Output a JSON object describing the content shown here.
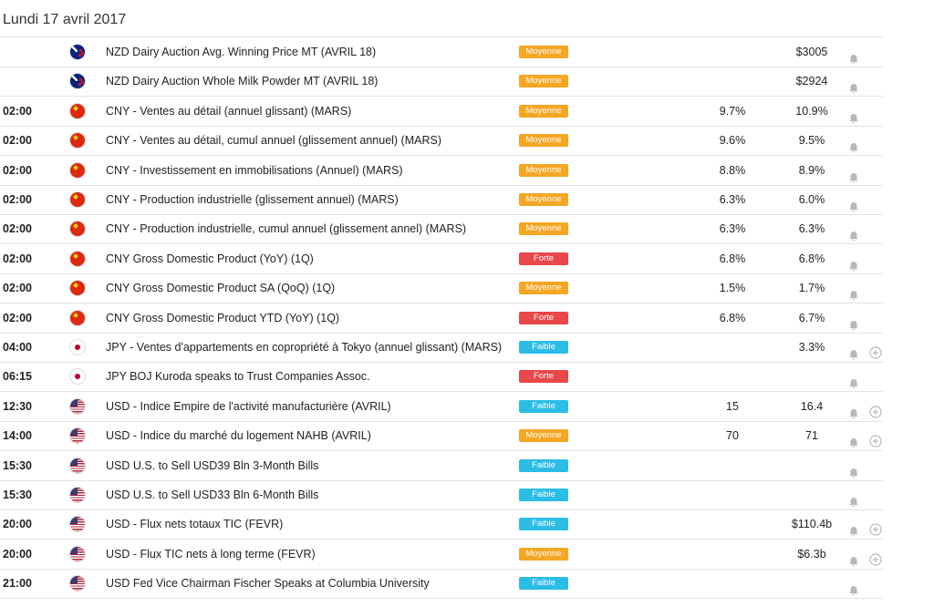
{
  "header": {
    "title": "Lundi 17 avril 2017"
  },
  "table": {
    "rows": [
      {
        "time": null,
        "event": "NZD Dairy Auction Avg. Winning Price MT (AVRIL 18)",
        "impact": "Moyenne",
        "impact_color": "#f5a623",
        "actual": null,
        "forecast": "$3005"
      },
      {
        "time": null,
        "event": "NZD Dairy Auction Whole Milk Powder MT (AVRIL 18)",
        "impact": "Moyenne",
        "impact_color": "#f5a623",
        "actual": null,
        "forecast": "$2924"
      },
      {
        "time": "02:00",
        "event": "CNY - Ventes au détail (annuel glissant) (MARS)",
        "impact": "Moyenne",
        "impact_color": "#f5a623",
        "actual": "9.7%",
        "forecast": "10.9%"
      },
      {
        "time": "02:00",
        "event": "CNY - Ventes au détail, cumul annuel (glissement annuel) (MARS)",
        "impact": "Moyenne",
        "impact_color": "#f5a623",
        "actual": "9.6%",
        "forecast": "9.5%"
      },
      {
        "time": "02:00",
        "event": "CNY - Investissement en immobilisations (Annuel) (MARS)",
        "impact": "Moyenne",
        "impact_color": "#f5a623",
        "actual": "8.8%",
        "forecast": "8.9%"
      },
      {
        "time": "02:00",
        "event": "CNY - Production industrielle (glissement annuel) (MARS)",
        "impact": "Moyenne",
        "impact_color": "#f5a623",
        "actual": "6.3%",
        "forecast": "6.0%"
      },
      {
        "time": "02:00",
        "event": "CNY - Production industrielle, cumul annuel (glissement annel) (MARS)",
        "impact": "Moyenne",
        "impact_color": "#f5a623",
        "actual": "6.3%",
        "forecast": "6.3%"
      },
      {
        "time": "02:00",
        "event": "CNY Gross Domestic Product (YoY) (1Q)",
        "impact": "Forte",
        "impact_color": "#e9474a",
        "actual": "6.8%",
        "forecast": "6.8%"
      },
      {
        "time": "02:00",
        "event": "CNY Gross Domestic Product SA (QoQ) (1Q)",
        "impact": "Moyenne",
        "impact_color": "#f5a623",
        "actual": "1.5%",
        "forecast": "1.7%"
      },
      {
        "time": "02:00",
        "event": "CNY Gross Domestic Product YTD (YoY) (1Q)",
        "impact": "Forte",
        "impact_color": "#e9474a",
        "actual": "6.8%",
        "forecast": "6.7%"
      },
      {
        "time": "04:00",
        "event": "JPY - Ventes d'appartements en copropriété à Tokyo (annuel glissant) (MARS)",
        "impact": "Faible",
        "impact_color": "#2bbde6",
        "actual": null,
        "forecast": "3.3%"
      },
      {
        "time": "06:15",
        "event": "JPY BOJ Kuroda speaks to Trust Companies Assoc.",
        "impact": "Forte",
        "impact_color": "#e9474a",
        "actual": null,
        "forecast": null
      },
      {
        "time": "12:30",
        "event": "USD - Indice Empire de l'activité manufacturière (AVRIL)",
        "impact": "Faible",
        "impact_color": "#2bbde6",
        "actual": "15",
        "forecast": "16.4"
      },
      {
        "time": "14:00",
        "event": "USD - Indice du marché du logement NAHB (AVRIL)",
        "impact": "Moyenne",
        "impact_color": "#f5a623",
        "actual": "70",
        "forecast": "71"
      },
      {
        "time": "15:30",
        "event": "USD U.S. to Sell USD39 Bln 3-Month Bills",
        "impact": "Faible",
        "impact_color": "#2bbde6",
        "actual": null,
        "forecast": null
      },
      {
        "time": "15:30",
        "event": "USD U.S. to Sell USD33 Bln 6-Month Bills",
        "impact": "Faible",
        "impact_color": "#2bbde6",
        "actual": null,
        "forecast": null
      },
      {
        "time": "20:00",
        "event": "USD - Flux nets totaux TIC (FEVR)",
        "impact": "Faible",
        "impact_color": "#2bbde6",
        "actual": null,
        "forecast": "$110.4b"
      },
      {
        "time": "20:00",
        "event": "USD - Flux TIC nets à long terme (FEVR)",
        "impact": "Moyenne",
        "impact_color": "#f5a623",
        "actual": null,
        "forecast": "$6.3b"
      },
      {
        "time": "21:00",
        "event": "USD Fed Vice Chairman Fischer Speaks at Columbia University",
        "impact": "Faible",
        "impact_color": "#2bbde6",
        "actual": null,
        "forecast": null
      }
    ]
  }
}
